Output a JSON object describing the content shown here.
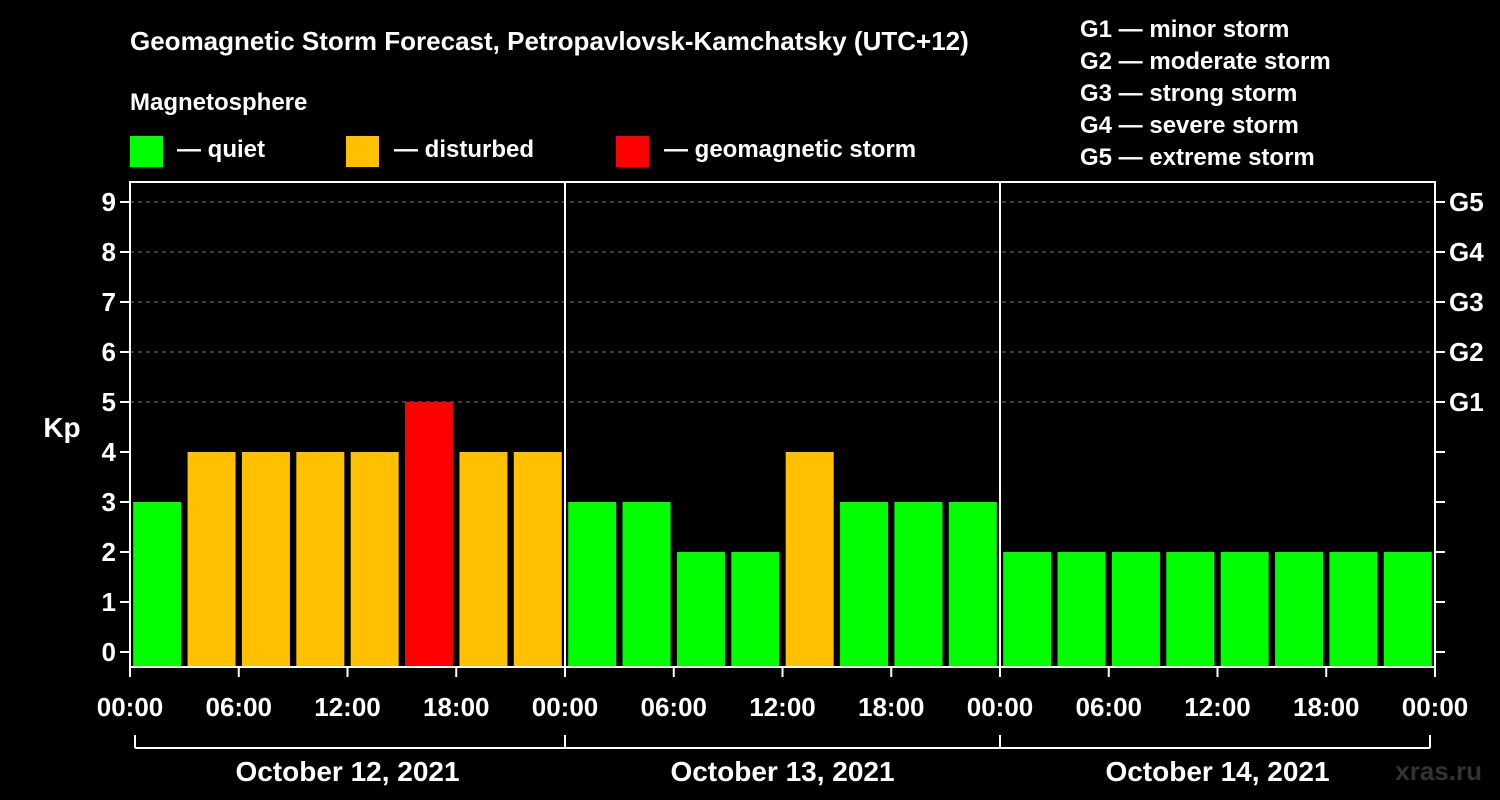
{
  "chart_data": {
    "type": "bar",
    "title": "Geomagnetic Storm Forecast, Petropavlovsk-Kamchatsky (UTC+12)",
    "ylabel": "Kp",
    "ylim": [
      0,
      9
    ],
    "yticks": [
      "0",
      "1",
      "2",
      "3",
      "4",
      "5",
      "6",
      "7",
      "8",
      "9"
    ],
    "right_axis_labels": [
      {
        "kp": 5,
        "label": "G1"
      },
      {
        "kp": 6,
        "label": "G2"
      },
      {
        "kp": 7,
        "label": "G3"
      },
      {
        "kp": 8,
        "label": "G4"
      },
      {
        "kp": 9,
        "label": "G5"
      }
    ],
    "legend_title": "Magnetosphere",
    "legend": [
      {
        "label": "— quiet",
        "color": "#00ff00"
      },
      {
        "label": "— disturbed",
        "color": "#ffc000"
      },
      {
        "label": "— geomagnetic storm",
        "color": "#ff0000"
      }
    ],
    "storm_scale": [
      "G1 — minor storm",
      "G2 — moderate storm",
      "G3 — strong storm",
      "G4 — severe storm",
      "G5 — extreme storm"
    ],
    "xtick_labels": [
      "00:00",
      "06:00",
      "12:00",
      "18:00",
      "00:00",
      "06:00",
      "12:00",
      "18:00",
      "00:00",
      "06:00",
      "12:00",
      "18:00",
      "00:00"
    ],
    "days": [
      "October 12, 2021",
      "October 13, 2021",
      "October 14, 2021"
    ],
    "values": [
      3,
      4,
      4,
      4,
      4,
      5,
      4,
      4,
      3,
      3,
      2,
      2,
      4,
      3,
      3,
      3,
      2,
      2,
      2,
      2,
      2,
      2,
      2,
      2
    ],
    "colors": {
      "quiet": "#00ff00",
      "disturbed": "#ffc000",
      "storm": "#ff0000"
    },
    "grid": true
  },
  "watermark": "xras.ru"
}
